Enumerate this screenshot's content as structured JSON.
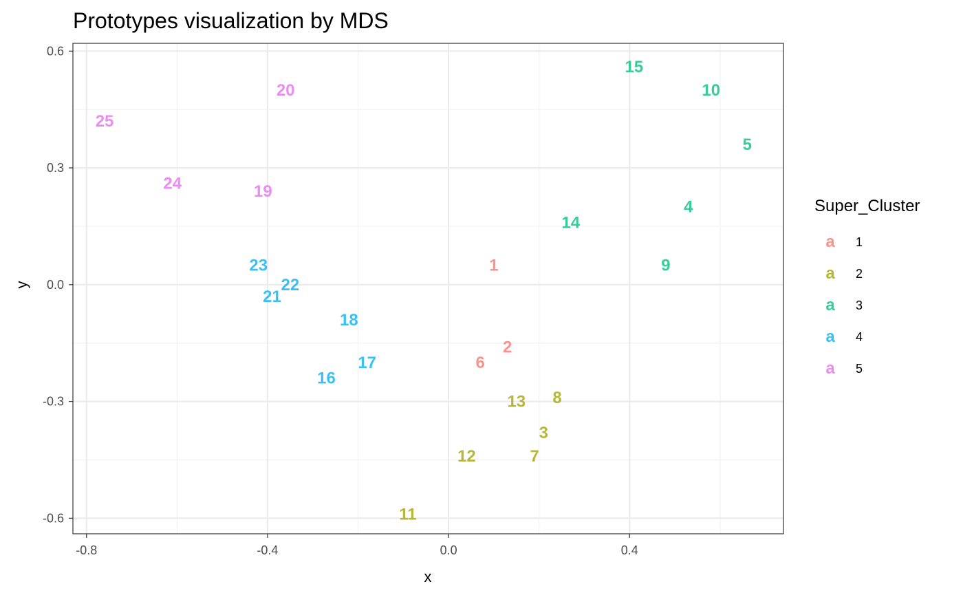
{
  "chart_data": {
    "type": "scatter",
    "title": "Prototypes visualization by MDS",
    "xlabel": "x",
    "ylabel": "y",
    "xlim": [
      -0.83,
      0.74
    ],
    "ylim": [
      -0.64,
      0.62
    ],
    "x_ticks": [
      -0.8,
      -0.4,
      0.0,
      0.4
    ],
    "x_tick_labels": [
      "-0.8",
      "-0.4",
      "0.0",
      "0.4"
    ],
    "y_ticks": [
      -0.6,
      -0.3,
      0.0,
      0.3,
      0.6
    ],
    "y_tick_labels": [
      "-0.6",
      "-0.3",
      "0.0",
      "0.3",
      "0.6"
    ],
    "x_minor": [
      -0.6,
      -0.2,
      0.2,
      0.6
    ],
    "y_minor": [
      -0.45,
      -0.15,
      0.15,
      0.45
    ],
    "grid": true,
    "legend": {
      "title": "Super_Cluster",
      "placement": "right",
      "key_glyph": "a",
      "entries": [
        {
          "label": "1",
          "color": "#F8766D"
        },
        {
          "label": "2",
          "color": "#A3A500"
        },
        {
          "label": "3",
          "color": "#00BF7D"
        },
        {
          "label": "4",
          "color": "#00B0F6"
        },
        {
          "label": "5",
          "color": "#E76BF3"
        }
      ]
    },
    "points": [
      {
        "label": "1",
        "x": 0.1,
        "y": 0.05,
        "cluster": "1"
      },
      {
        "label": "2",
        "x": 0.13,
        "y": -0.16,
        "cluster": "1"
      },
      {
        "label": "6",
        "x": 0.07,
        "y": -0.2,
        "cluster": "1"
      },
      {
        "label": "3",
        "x": 0.21,
        "y": -0.38,
        "cluster": "2"
      },
      {
        "label": "7",
        "x": 0.19,
        "y": -0.44,
        "cluster": "2"
      },
      {
        "label": "8",
        "x": 0.24,
        "y": -0.29,
        "cluster": "2"
      },
      {
        "label": "11",
        "x": -0.09,
        "y": -0.59,
        "cluster": "2"
      },
      {
        "label": "12",
        "x": 0.04,
        "y": -0.44,
        "cluster": "2"
      },
      {
        "label": "13",
        "x": 0.15,
        "y": -0.3,
        "cluster": "2"
      },
      {
        "label": "4",
        "x": 0.53,
        "y": 0.2,
        "cluster": "3"
      },
      {
        "label": "5",
        "x": 0.66,
        "y": 0.36,
        "cluster": "3"
      },
      {
        "label": "9",
        "x": 0.48,
        "y": 0.05,
        "cluster": "3"
      },
      {
        "label": "10",
        "x": 0.58,
        "y": 0.5,
        "cluster": "3"
      },
      {
        "label": "14",
        "x": 0.27,
        "y": 0.16,
        "cluster": "3"
      },
      {
        "label": "15",
        "x": 0.41,
        "y": 0.56,
        "cluster": "3"
      },
      {
        "label": "16",
        "x": -0.27,
        "y": -0.24,
        "cluster": "4"
      },
      {
        "label": "17",
        "x": -0.18,
        "y": -0.2,
        "cluster": "4"
      },
      {
        "label": "18",
        "x": -0.22,
        "y": -0.09,
        "cluster": "4"
      },
      {
        "label": "21",
        "x": -0.39,
        "y": -0.03,
        "cluster": "4"
      },
      {
        "label": "22",
        "x": -0.35,
        "y": 0.0,
        "cluster": "4"
      },
      {
        "label": "23",
        "x": -0.42,
        "y": 0.05,
        "cluster": "4"
      },
      {
        "label": "19",
        "x": -0.41,
        "y": 0.24,
        "cluster": "5"
      },
      {
        "label": "20",
        "x": -0.36,
        "y": 0.5,
        "cluster": "5"
      },
      {
        "label": "24",
        "x": -0.61,
        "y": 0.26,
        "cluster": "5"
      },
      {
        "label": "25",
        "x": -0.76,
        "y": 0.42,
        "cluster": "5"
      }
    ]
  }
}
